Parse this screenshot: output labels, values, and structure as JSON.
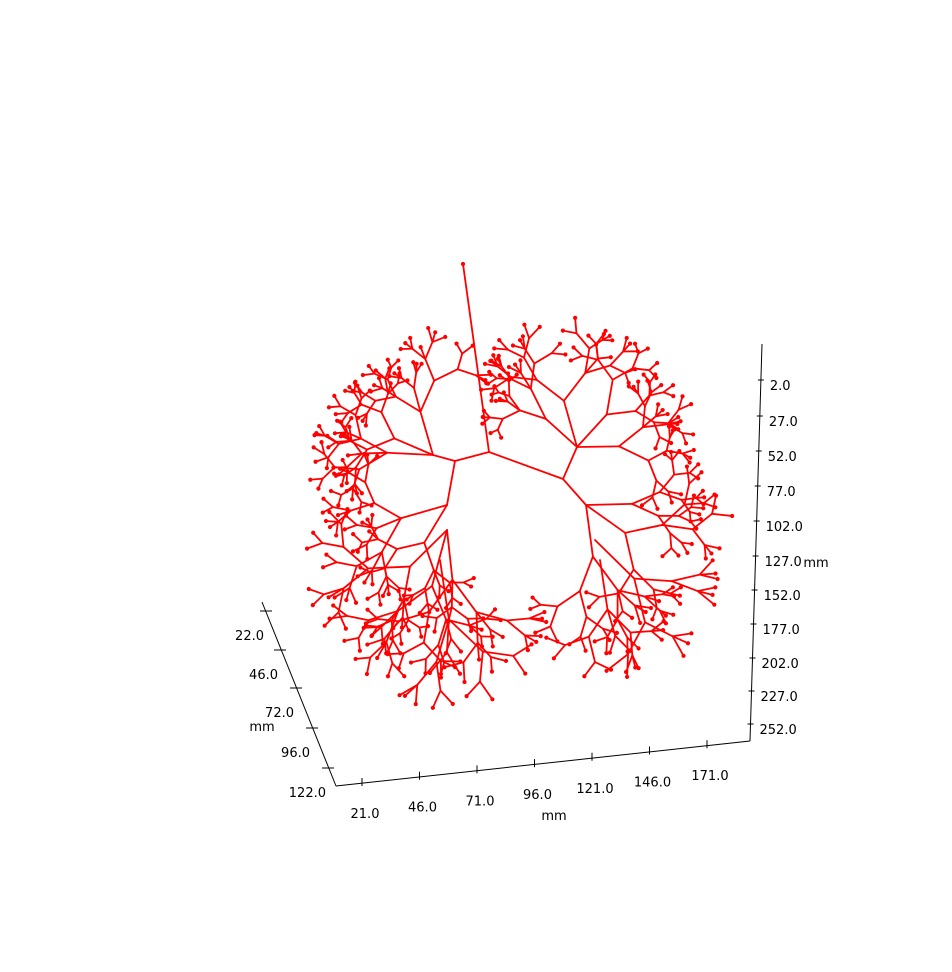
{
  "chart_data": {
    "type": "3d-line",
    "title": "",
    "color": "#ff0000",
    "axes": {
      "x": {
        "label": "mm",
        "ticks": [
          "21.0",
          "46.0",
          "71.0",
          "96.0",
          "121.0",
          "146.0",
          "171.0"
        ]
      },
      "y": {
        "label": "mm",
        "ticks": [
          "22.0",
          "46.0",
          "72.0",
          "96.0",
          "122.0"
        ]
      },
      "z": {
        "label": "mm",
        "ticks": [
          "2.0",
          "27.0",
          "52.0",
          "77.0",
          "102.0",
          "127.0",
          "152.0",
          "177.0",
          "202.0",
          "227.0",
          "252.0"
        ]
      }
    },
    "series": [
      {
        "points": [
          [
            103,
            20
          ],
          [
            111,
            42
          ],
          [
            127,
            50
          ],
          [
            144,
            56
          ],
          [
            141,
            58
          ],
          [
            76,
            48
          ],
          [
            65,
            48
          ],
          [
            62,
            46
          ],
          [
            60,
            44
          ],
          [
            59,
            44
          ],
          [
            58,
            45
          ],
          [
            57,
            46
          ],
          [
            56,
            44
          ],
          [
            56,
            42
          ],
          [
            56,
            40
          ],
          [
            54,
            36
          ],
          [
            52,
            33
          ],
          [
            52,
            30
          ],
          [
            51,
            27
          ],
          [
            51,
            24
          ],
          [
            50,
            21
          ],
          [
            50,
            18
          ],
          [
            49,
            15
          ]
        ],
        "edges": [
          [
            0,
            1
          ],
          [
            1,
            2
          ],
          [
            2,
            3
          ],
          [
            3,
            4
          ],
          [
            1,
            5
          ],
          [
            5,
            6
          ],
          [
            6,
            7
          ],
          [
            7,
            8
          ],
          [
            8,
            9
          ],
          [
            9,
            10
          ],
          [
            10,
            11
          ],
          [
            8,
            12
          ],
          [
            12,
            13
          ],
          [
            13,
            14
          ],
          [
            14,
            15
          ],
          [
            15,
            16
          ],
          [
            16,
            17
          ],
          [
            17,
            18
          ],
          [
            18,
            19
          ],
          [
            19,
            20
          ],
          [
            20,
            21
          ],
          [
            21,
            22
          ]
        ]
      }
    ]
  }
}
